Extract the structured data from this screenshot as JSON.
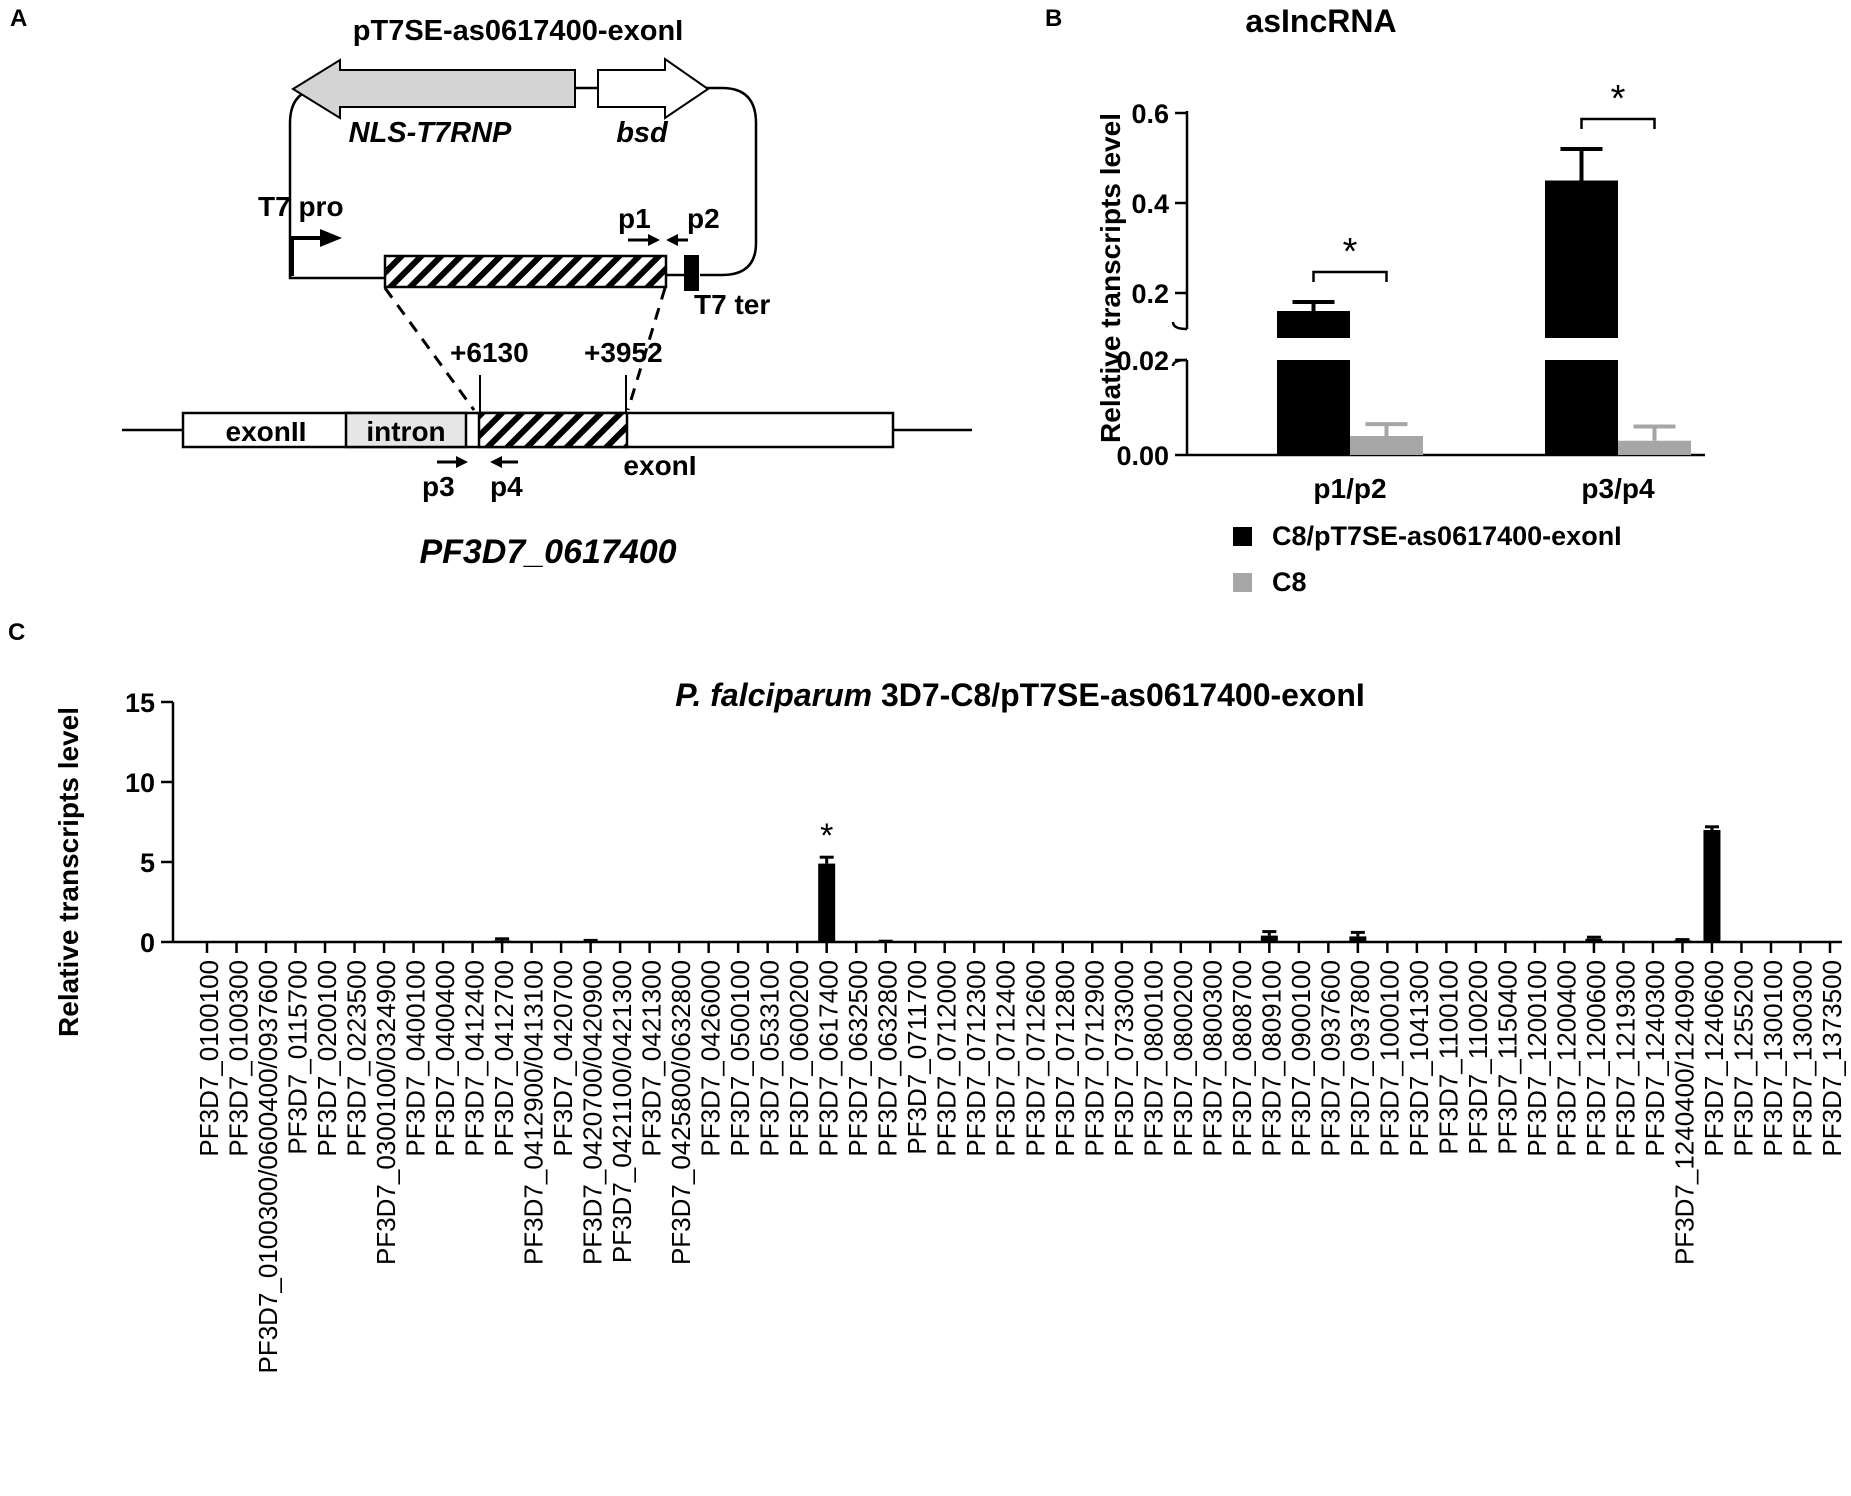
{
  "panel_a": {
    "panel_label": "A",
    "plasmid_name": "pT7SE-as0617400-exonI",
    "gene_nls": "NLS-T7RNP",
    "gene_bsd": "bsd",
    "promoter": "T7 pro",
    "terminator": "T7 ter",
    "primer_p1": "p1",
    "primer_p2": "p2",
    "primer_p3": "p3",
    "primer_p4": "p4",
    "coord_left": "+6130",
    "coord_right": "+3952",
    "exon2_label": "exonII",
    "intron_label": "intron",
    "exon1_label": "exonI",
    "gene_id": "PF3D7_0617400"
  },
  "chart_data": [
    {
      "type": "bar",
      "panel_label": "B",
      "title": "asIncRNA",
      "ylabel": "Relative transcripts level",
      "categories": [
        "p1/p2",
        "p3/p4"
      ],
      "series": [
        {
          "name": "C8/pT7SE-as0617400-exonI",
          "values": [
            0.16,
            0.45
          ],
          "errors": [
            0.02,
            0.07
          ],
          "color": "#000000"
        },
        {
          "name": "C8",
          "values": [
            0.004,
            0.003
          ],
          "errors": [
            0.0025,
            0.003
          ],
          "color": "#a6a6a6"
        }
      ],
      "significance": [
        "*",
        "*"
      ],
      "y_axis_break": true,
      "y_lower_ticks": [
        "0.00",
        "0.02"
      ],
      "y_upper_ticks": [
        "0.2",
        "0.4",
        "0.6"
      ],
      "ylim_lower": [
        0,
        0.02
      ],
      "ylim_upper": [
        0.1,
        0.6
      ],
      "legend_placement": "bottom"
    },
    {
      "type": "bar",
      "panel_label": "C",
      "title_italic": "P. falciparum",
      "title_rest": " 3D7-C8/pT7SE-as0617400-exonI",
      "ylabel": "Relative transcripts level",
      "ylim": [
        0,
        15
      ],
      "yticks": [
        "0",
        "5",
        "10",
        "15"
      ],
      "categories": [
        "PF3D7_0100100",
        "PF3D7_0100300",
        "PF3D7_0100300/0600400/0937600",
        "PF3D7_0115700",
        "PF3D7_0200100",
        "PF3D7_0223500",
        "PF3D7_0300100/0324900",
        "PF3D7_0400100",
        "PF3D7_0400400",
        "PF3D7_0412400",
        "PF3D7_0412700",
        "PF3D7_0412900/0413100",
        "PF3D7_0420700",
        "PF3D7_0420700/0420900",
        "PF3D7_0421100/0421300",
        "PF3D7_0421300",
        "PF3D7_0425800/0632800",
        "PF3D7_0426000",
        "PF3D7_0500100",
        "PF3D7_0533100",
        "PF3D7_0600200",
        "PF3D7_0617400",
        "PF3D7_0632500",
        "PF3D7_0632800",
        "PF3D7_0711700",
        "PF3D7_0712000",
        "PF3D7_0712300",
        "PF3D7_0712400",
        "PF3D7_0712600",
        "PF3D7_0712800",
        "PF3D7_0712900",
        "PF3D7_0733000",
        "PF3D7_0800100",
        "PF3D7_0800200",
        "PF3D7_0800300",
        "PF3D7_0808700",
        "PF3D7_0809100",
        "PF3D7_0900100",
        "PF3D7_0937600",
        "PF3D7_0937800",
        "PF3D7_1000100",
        "PF3D7_1041300",
        "PF3D7_1100100",
        "PF3D7_1100200",
        "PF3D7_1150400",
        "PF3D7_1200100",
        "PF3D7_1200400",
        "PF3D7_1200600",
        "PF3D7_1219300",
        "PF3D7_1240300",
        "PF3D7_1240400/1240900",
        "PF3D7_1240600",
        "PF3D7_1255200",
        "PF3D7_1300100",
        "PF3D7_1300300",
        "PF3D7_1373500"
      ],
      "values": [
        0,
        0,
        0,
        0,
        0,
        0,
        0,
        0,
        0,
        0,
        0.1,
        0,
        0,
        0.05,
        0,
        0,
        0,
        0,
        0,
        0,
        0,
        4.9,
        0,
        0.02,
        0,
        0,
        0,
        0,
        0,
        0,
        0,
        0,
        0,
        0,
        0,
        0,
        0.4,
        0,
        0,
        0.35,
        0,
        0,
        0,
        0,
        0,
        0,
        0,
        0.2,
        0,
        0,
        0.1,
        7.0,
        0,
        0,
        0,
        0
      ],
      "errors": [
        0,
        0,
        0,
        0,
        0,
        0,
        0,
        0,
        0,
        0,
        0.1,
        0,
        0,
        0.05,
        0,
        0,
        0,
        0,
        0,
        0,
        0,
        0.4,
        0,
        0.03,
        0,
        0,
        0,
        0,
        0,
        0,
        0,
        0,
        0,
        0,
        0,
        0,
        0.25,
        0,
        0,
        0.25,
        0,
        0,
        0,
        0,
        0,
        0,
        0,
        0.1,
        0,
        0,
        0.05,
        0.2,
        0,
        0,
        0,
        0
      ],
      "significance_index": 21,
      "significance": "*",
      "color": "#000000"
    }
  ]
}
